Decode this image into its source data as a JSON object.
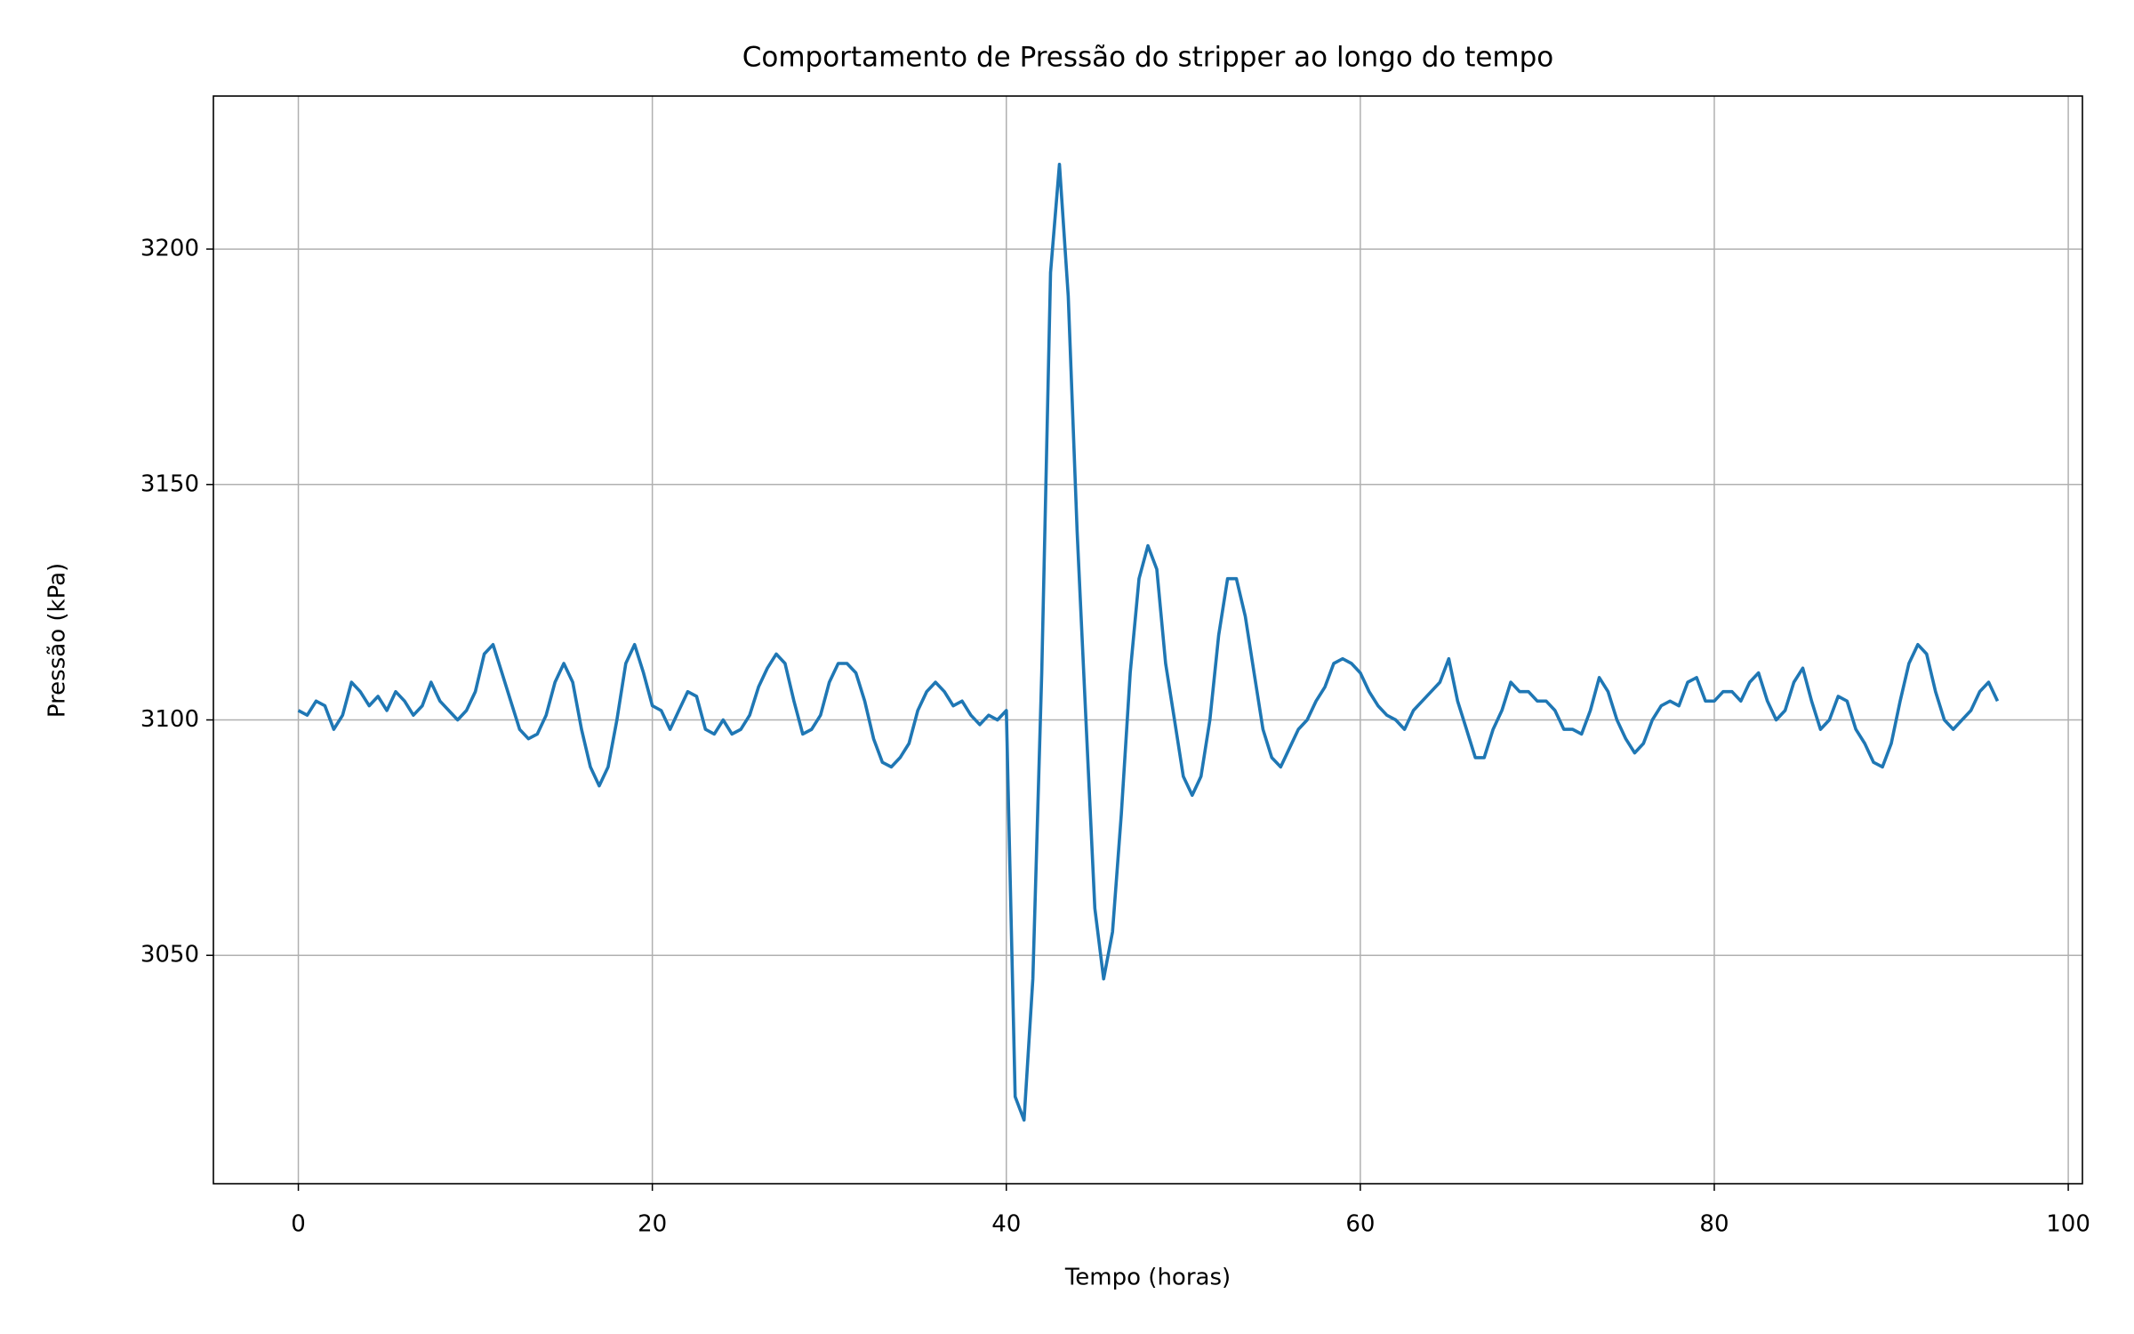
{
  "chart_data": {
    "type": "line",
    "title": "Comportamento de Pressão do stripper ao longo do tempo",
    "xlabel": "Tempo (horas)",
    "ylabel": "Pressão (kPa)",
    "xlim": [
      -4.8,
      100.8
    ],
    "ylim": [
      3001.5,
      3232.5
    ],
    "xticks": [
      0,
      20,
      40,
      60,
      80,
      100
    ],
    "yticks": [
      3050,
      3100,
      3150,
      3200
    ],
    "grid": true,
    "x": [
      0,
      0.5,
      1,
      1.5,
      2,
      2.5,
      3,
      3.5,
      4,
      4.5,
      5,
      5.5,
      6,
      6.5,
      7,
      7.5,
      8,
      8.5,
      9,
      9.5,
      10,
      10.5,
      11,
      11.5,
      12,
      12.5,
      13,
      13.5,
      14,
      14.5,
      15,
      15.5,
      16,
      16.5,
      17,
      17.5,
      18,
      18.5,
      19,
      19.5,
      20,
      20.5,
      21,
      21.5,
      22,
      22.5,
      23,
      23.5,
      24,
      24.5,
      25,
      25.5,
      26,
      26.5,
      27,
      27.5,
      28,
      28.5,
      29,
      29.5,
      30,
      30.5,
      31,
      31.5,
      32,
      32.5,
      33,
      33.5,
      34,
      34.5,
      35,
      35.5,
      36,
      36.5,
      37,
      37.5,
      38,
      38.5,
      39,
      39.5,
      40,
      40.5,
      41,
      41.5,
      42,
      42.5,
      43,
      43.5,
      44,
      44.5,
      45,
      45.5,
      46,
      46.5,
      47,
      47.5,
      48,
      48.5,
      49,
      49.5,
      50,
      50.5,
      51,
      51.5,
      52,
      52.5,
      53,
      53.5,
      54,
      54.5,
      55,
      55.5,
      56,
      56.5,
      57,
      57.5,
      58,
      58.5,
      59,
      59.5,
      60,
      60.5,
      61,
      61.5,
      62,
      62.5,
      63,
      63.5,
      64,
      64.5,
      65,
      65.5,
      66,
      66.5,
      67,
      67.5,
      68,
      68.5,
      69,
      69.5,
      70,
      70.5,
      71,
      71.5,
      72,
      72.5,
      73,
      73.5,
      74,
      74.5,
      75,
      75.5,
      76,
      76.5,
      77,
      77.5,
      78,
      78.5,
      79,
      79.5,
      80,
      80.5,
      81,
      81.5,
      82,
      82.5,
      83,
      83.5,
      84,
      84.5,
      85,
      85.5,
      86,
      86.5,
      87,
      87.5,
      88,
      88.5,
      89,
      89.5,
      90,
      90.5,
      91,
      91.5,
      92,
      92.5,
      93,
      93.5,
      94,
      94.5,
      95,
      95.5,
      96
    ],
    "series": [
      {
        "color": "#1f77b4",
        "values": [
          3102,
          3101,
          3104,
          3103,
          3098,
          3101,
          3108,
          3106,
          3103,
          3105,
          3102,
          3106,
          3104,
          3101,
          3103,
          3108,
          3104,
          3102,
          3100,
          3102,
          3106,
          3114,
          3116,
          3110,
          3104,
          3098,
          3096,
          3097,
          3101,
          3108,
          3112,
          3108,
          3098,
          3090,
          3086,
          3090,
          3100,
          3112,
          3116,
          3110,
          3103,
          3102,
          3098,
          3102,
          3106,
          3105,
          3098,
          3097,
          3100,
          3097,
          3098,
          3101,
          3107,
          3111,
          3114,
          3112,
          3104,
          3097,
          3098,
          3101,
          3108,
          3112,
          3112,
          3110,
          3104,
          3096,
          3091,
          3090,
          3092,
          3095,
          3102,
          3106,
          3108,
          3106,
          3103,
          3104,
          3101,
          3099,
          3101,
          3100,
          3102,
          3020,
          3015,
          3045,
          3110,
          3195,
          3218,
          3190,
          3140,
          3100,
          3060,
          3045,
          3055,
          3080,
          3110,
          3130,
          3137,
          3132,
          3112,
          3100,
          3088,
          3084,
          3088,
          3100,
          3118,
          3130,
          3130,
          3122,
          3110,
          3098,
          3092,
          3090,
          3094,
          3098,
          3100,
          3104,
          3107,
          3112,
          3113,
          3112,
          3110,
          3106,
          3103,
          3101,
          3100,
          3098,
          3102,
          3104,
          3106,
          3108,
          3113,
          3104,
          3098,
          3092,
          3092,
          3098,
          3102,
          3108,
          3106,
          3106,
          3104,
          3104,
          3102,
          3098,
          3098,
          3097,
          3102,
          3109,
          3106,
          3100,
          3096,
          3093,
          3095,
          3100,
          3103,
          3104,
          3103,
          3108,
          3109,
          3104,
          3104,
          3106,
          3106,
          3104,
          3108,
          3110,
          3104,
          3100,
          3102,
          3108,
          3111,
          3104,
          3098,
          3100,
          3105,
          3104,
          3098,
          3095,
          3091,
          3090,
          3095,
          3104,
          3112,
          3116,
          3114,
          3106,
          3100,
          3098,
          3100,
          3102,
          3106,
          3108,
          3104
        ]
      }
    ]
  }
}
